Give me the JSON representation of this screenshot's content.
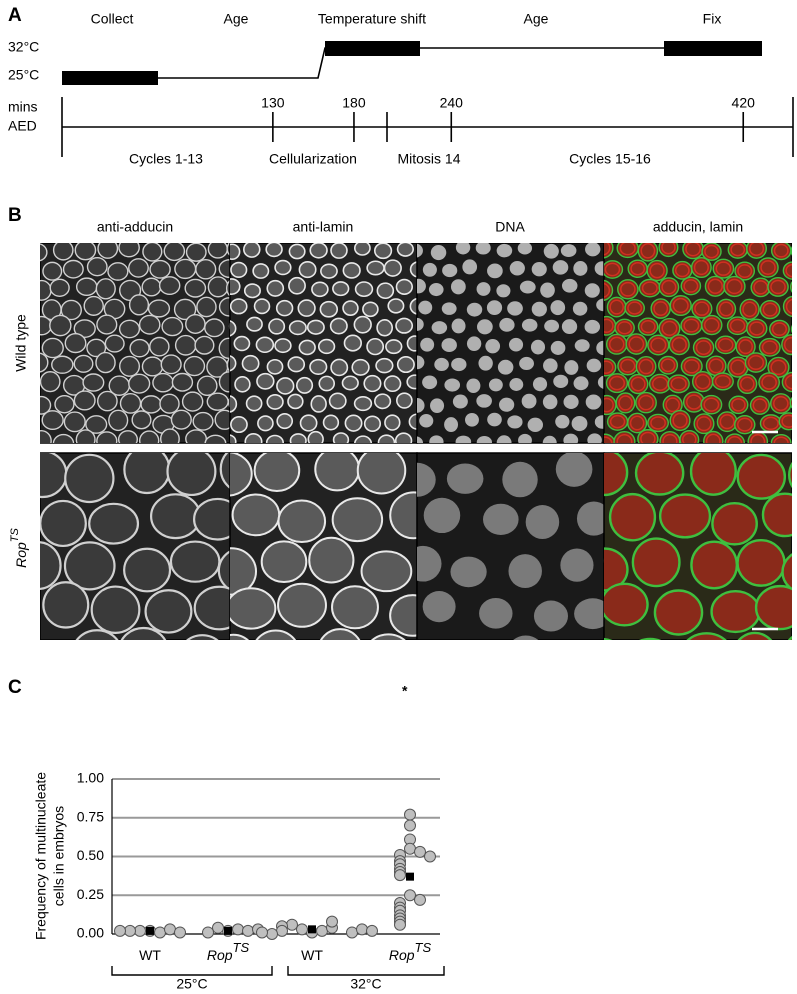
{
  "panel_a": {
    "label": "A",
    "stages": [
      "Collect",
      "Age",
      "Temperature shift",
      "Age",
      "Fix"
    ],
    "temps": [
      "32°C",
      "25°C"
    ],
    "axis_title": [
      "mins",
      "AED"
    ],
    "ticks": [
      130,
      180,
      240,
      420
    ],
    "phases": [
      "Cycles 1-13",
      "Cellularization",
      "Mitosis 14",
      "Cycles 15-16"
    ]
  },
  "panel_b": {
    "label": "B",
    "columns": [
      "anti-adducin",
      "anti-lamin",
      "DNA",
      "adducin, lamin"
    ],
    "rows": [
      {
        "text": "Wild type"
      },
      {
        "text": "Rop",
        "sup": "TS"
      }
    ]
  },
  "panel_c_label": "C",
  "chart_data": {
    "type": "strip",
    "ylabel": [
      "Frequency of multinucleate",
      "cells in embryos"
    ],
    "categories": [
      "WT",
      "Rop",
      "WT",
      "Rop"
    ],
    "category_superscripts": [
      null,
      "TS",
      null,
      "TS"
    ],
    "groups": [
      "25°C",
      "32°C"
    ],
    "values": [
      [
        0.02,
        0.01,
        0.02,
        0.03,
        0.02,
        0.01,
        0.02
      ],
      [
        0.02,
        0.03,
        0.04,
        0.02,
        0.01,
        0.03
      ],
      [
        0.01,
        0.02,
        0.03,
        0.04,
        0.06,
        0.08,
        0.05,
        0.02,
        0.01,
        0.03,
        0.0,
        0.01,
        0.02
      ],
      [
        0.77,
        0.7,
        0.61,
        0.55,
        0.53,
        0.51,
        0.5,
        0.47,
        0.45,
        0.42,
        0.4,
        0.38,
        0.25,
        0.22,
        0.2,
        0.17,
        0.15,
        0.12,
        0.1,
        0.08,
        0.06
      ]
    ],
    "means": [
      0.02,
      0.02,
      0.03,
      0.37
    ],
    "color": "#bfbfbf",
    "mean_color": "#000000",
    "annotation": "*",
    "ylim": [
      0,
      1
    ],
    "yticks": [
      {
        "value": 0,
        "label": "0.00"
      },
      {
        "value": 0.25,
        "label": "0.25"
      },
      {
        "value": 0.5,
        "label": "0.50"
      },
      {
        "value": 0.75,
        "label": "0.75"
      },
      {
        "value": 1,
        "label": "1.00"
      }
    ],
    "grid": true
  }
}
